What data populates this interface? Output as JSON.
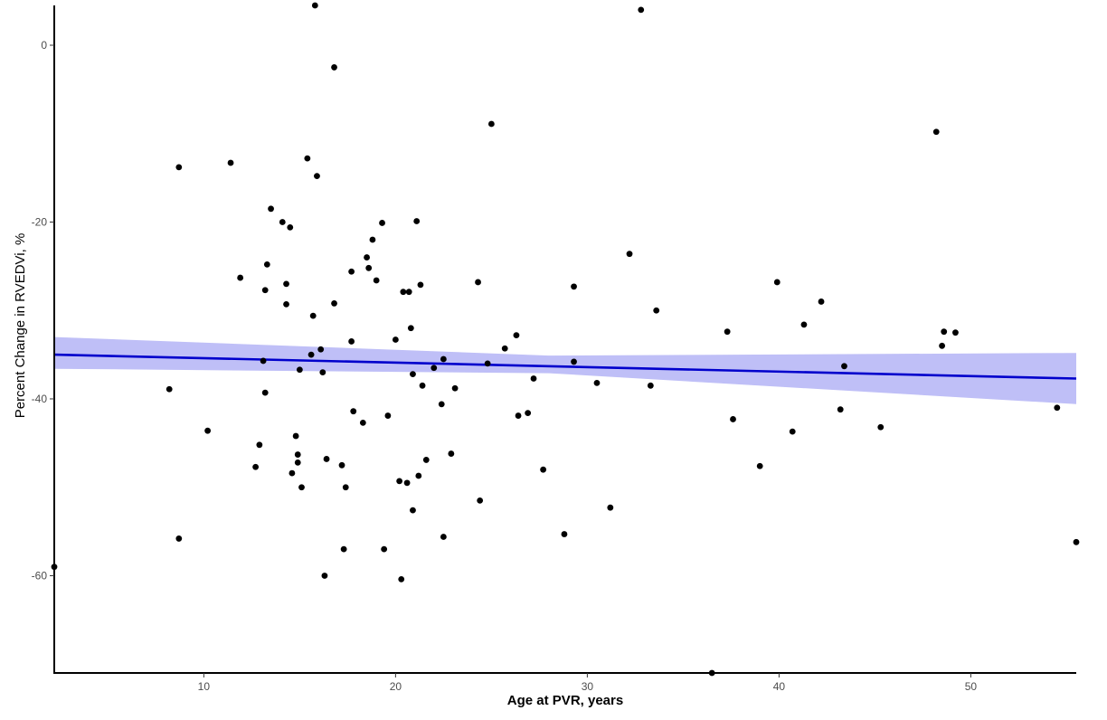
{
  "chart_data": {
    "type": "scatter",
    "title": "",
    "xlabel": "Age at PVR, years",
    "ylabel": "Percent Change in RVEDVi, %",
    "xlim": [
      2.2,
      55.5
    ],
    "ylim": [
      -71,
      4.5
    ],
    "x_ticks": [
      10,
      20,
      30,
      40,
      50
    ],
    "y_ticks": [
      0,
      -20,
      -40,
      -60
    ],
    "grid": false,
    "legend": "none",
    "point_color": "#000000",
    "trend_line": {
      "color": "#0000cc",
      "band_color": "#bfbff7",
      "start": {
        "x": 2.2,
        "y": -35.0,
        "lower": -36.6,
        "upper": -33.0
      },
      "mid": {
        "x": 28.0,
        "y": -36.1,
        "lower": -37.1,
        "upper": -35.1
      },
      "end": {
        "x": 55.5,
        "y": -37.7,
        "lower": -40.6,
        "upper": -34.8
      }
    },
    "points": [
      {
        "x": 15.8,
        "y": 4.5
      },
      {
        "x": 32.8,
        "y": 4.0
      },
      {
        "x": 16.8,
        "y": -2.5
      },
      {
        "x": 25.0,
        "y": -8.9
      },
      {
        "x": 48.2,
        "y": -9.8
      },
      {
        "x": 8.7,
        "y": -13.8
      },
      {
        "x": 11.4,
        "y": -13.3
      },
      {
        "x": 15.4,
        "y": -12.8
      },
      {
        "x": 15.9,
        "y": -14.8
      },
      {
        "x": 13.5,
        "y": -18.5
      },
      {
        "x": 14.1,
        "y": -20.0
      },
      {
        "x": 14.5,
        "y": -20.6
      },
      {
        "x": 19.3,
        "y": -20.1
      },
      {
        "x": 21.1,
        "y": -19.9
      },
      {
        "x": 18.8,
        "y": -22.0
      },
      {
        "x": 32.2,
        "y": -23.6
      },
      {
        "x": 18.5,
        "y": -24.0
      },
      {
        "x": 13.3,
        "y": -24.8
      },
      {
        "x": 18.6,
        "y": -25.2
      },
      {
        "x": 17.7,
        "y": -25.6
      },
      {
        "x": 11.9,
        "y": -26.3
      },
      {
        "x": 19.0,
        "y": -26.6
      },
      {
        "x": 14.3,
        "y": -27.0
      },
      {
        "x": 24.3,
        "y": -26.8
      },
      {
        "x": 21.3,
        "y": -27.1
      },
      {
        "x": 29.3,
        "y": -27.3
      },
      {
        "x": 39.9,
        "y": -26.8
      },
      {
        "x": 13.2,
        "y": -27.7
      },
      {
        "x": 20.4,
        "y": -27.9
      },
      {
        "x": 20.7,
        "y": -27.9
      },
      {
        "x": 14.3,
        "y": -29.3
      },
      {
        "x": 16.8,
        "y": -29.2
      },
      {
        "x": 42.2,
        "y": -29.0
      },
      {
        "x": 33.6,
        "y": -30.0
      },
      {
        "x": 15.7,
        "y": -30.6
      },
      {
        "x": 41.3,
        "y": -31.6
      },
      {
        "x": 20.8,
        "y": -32.0
      },
      {
        "x": 26.3,
        "y": -32.8
      },
      {
        "x": 37.3,
        "y": -32.4
      },
      {
        "x": 48.6,
        "y": -32.4
      },
      {
        "x": 49.2,
        "y": -32.5
      },
      {
        "x": 17.7,
        "y": -33.5
      },
      {
        "x": 20.0,
        "y": -33.3
      },
      {
        "x": 48.5,
        "y": -34.0
      },
      {
        "x": 16.1,
        "y": -34.4
      },
      {
        "x": 25.7,
        "y": -34.3
      },
      {
        "x": 15.6,
        "y": -35.0
      },
      {
        "x": 13.1,
        "y": -35.7
      },
      {
        "x": 22.5,
        "y": -35.5
      },
      {
        "x": 24.8,
        "y": -36.0
      },
      {
        "x": 29.3,
        "y": -35.8
      },
      {
        "x": 43.4,
        "y": -36.3
      },
      {
        "x": 15.0,
        "y": -36.7
      },
      {
        "x": 16.2,
        "y": -37.0
      },
      {
        "x": 22.0,
        "y": -36.5
      },
      {
        "x": 20.9,
        "y": -37.2
      },
      {
        "x": 27.2,
        "y": -37.7
      },
      {
        "x": 21.4,
        "y": -38.5
      },
      {
        "x": 30.5,
        "y": -38.2
      },
      {
        "x": 33.3,
        "y": -38.5
      },
      {
        "x": 8.2,
        "y": -38.9
      },
      {
        "x": 23.1,
        "y": -38.8
      },
      {
        "x": 13.2,
        "y": -39.3
      },
      {
        "x": 22.4,
        "y": -40.6
      },
      {
        "x": 17.8,
        "y": -41.4
      },
      {
        "x": 19.6,
        "y": -41.9
      },
      {
        "x": 26.4,
        "y": -41.9
      },
      {
        "x": 26.9,
        "y": -41.6
      },
      {
        "x": 43.2,
        "y": -41.2
      },
      {
        "x": 54.5,
        "y": -41.0
      },
      {
        "x": 18.3,
        "y": -42.7
      },
      {
        "x": 37.6,
        "y": -42.3
      },
      {
        "x": 45.3,
        "y": -43.2
      },
      {
        "x": 10.2,
        "y": -43.6
      },
      {
        "x": 40.7,
        "y": -43.7
      },
      {
        "x": 14.8,
        "y": -44.2
      },
      {
        "x": 12.9,
        "y": -45.2
      },
      {
        "x": 14.9,
        "y": -46.3
      },
      {
        "x": 22.9,
        "y": -46.2
      },
      {
        "x": 16.4,
        "y": -46.8
      },
      {
        "x": 21.6,
        "y": -46.9
      },
      {
        "x": 14.9,
        "y": -47.2
      },
      {
        "x": 17.2,
        "y": -47.5
      },
      {
        "x": 12.7,
        "y": -47.7
      },
      {
        "x": 27.7,
        "y": -48.0
      },
      {
        "x": 39.0,
        "y": -47.6
      },
      {
        "x": 14.6,
        "y": -48.4
      },
      {
        "x": 21.2,
        "y": -48.7
      },
      {
        "x": 20.2,
        "y": -49.3
      },
      {
        "x": 20.6,
        "y": -49.5
      },
      {
        "x": 15.1,
        "y": -50.0
      },
      {
        "x": 17.4,
        "y": -50.0
      },
      {
        "x": 24.4,
        "y": -51.5
      },
      {
        "x": 20.9,
        "y": -52.6
      },
      {
        "x": 31.2,
        "y": -52.3
      },
      {
        "x": 28.8,
        "y": -55.3
      },
      {
        "x": 8.7,
        "y": -55.8
      },
      {
        "x": 22.5,
        "y": -55.6
      },
      {
        "x": 55.5,
        "y": -56.2
      },
      {
        "x": 17.3,
        "y": -57.0
      },
      {
        "x": 19.4,
        "y": -57.0
      },
      {
        "x": 2.2,
        "y": -59.0
      },
      {
        "x": 16.3,
        "y": -60.0
      },
      {
        "x": 20.3,
        "y": -60.4
      },
      {
        "x": 36.5,
        "y": -71.0
      }
    ]
  }
}
